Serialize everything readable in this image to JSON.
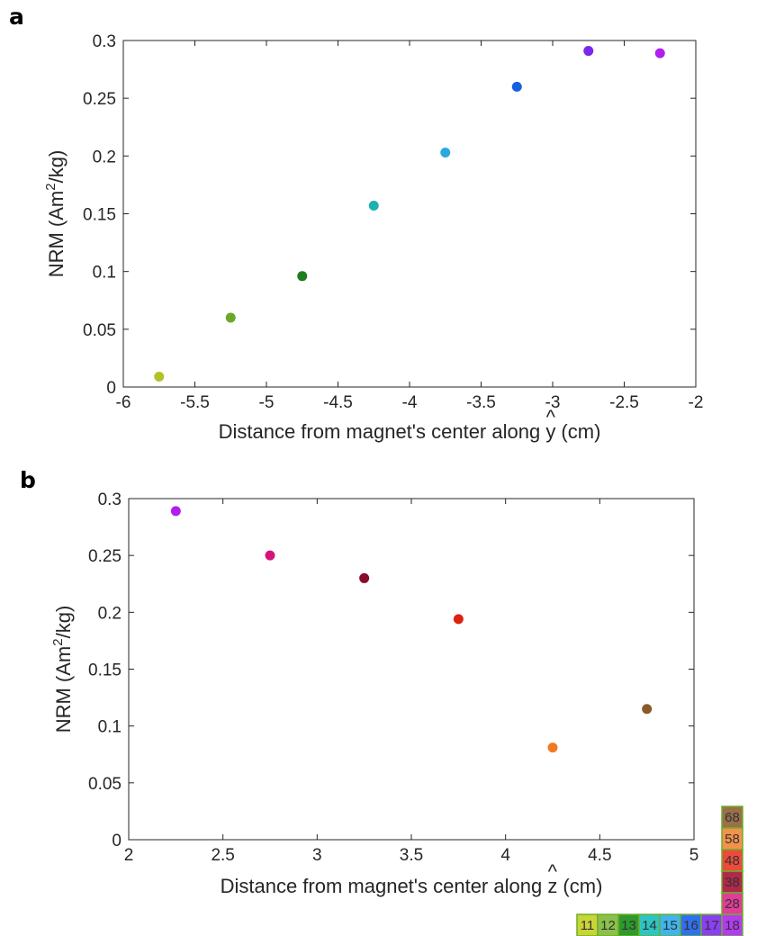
{
  "chart_data": [
    {
      "type": "scatter",
      "panel_label": "a",
      "xlabel": "Distance from magnet's center along y (cm)",
      "xlabel_parts": {
        "before": "Distance from magnet's center along ",
        "hat": "^",
        "var": "y",
        "after": " (cm)"
      },
      "ylabel": "NRM (Am2/kg)",
      "ylabel_parts": {
        "before": "NRM (Am",
        "sup": "2",
        "after": "/kg)"
      },
      "xlim": [
        -6,
        -2
      ],
      "ylim": [
        0,
        0.3
      ],
      "xticks": [
        -6,
        -5.5,
        -5,
        -4.5,
        -4,
        -3.5,
        -3,
        -2.5,
        -2
      ],
      "xtick_labels": [
        "-6",
        "-5.5",
        "-5",
        "-4.5",
        "-4",
        "-3.5",
        "-3",
        "-2.5",
        "-2"
      ],
      "yticks": [
        0,
        0.05,
        0.1,
        0.15,
        0.2,
        0.25,
        0.3
      ],
      "ytick_labels": [
        "0",
        "0.05",
        "0.1",
        "0.15",
        "0.2",
        "0.25",
        "0.3"
      ],
      "grid": false,
      "points": [
        {
          "x": -5.75,
          "y": 0.009,
          "color": "#b3c22a"
        },
        {
          "x": -5.25,
          "y": 0.06,
          "color": "#6aa82a"
        },
        {
          "x": -4.75,
          "y": 0.096,
          "color": "#1e7d1e"
        },
        {
          "x": -4.25,
          "y": 0.157,
          "color": "#1fb0b0"
        },
        {
          "x": -3.75,
          "y": 0.203,
          "color": "#2aa8e0"
        },
        {
          "x": -3.25,
          "y": 0.26,
          "color": "#1a5fe0"
        },
        {
          "x": -2.75,
          "y": 0.291,
          "color": "#7a28ee"
        },
        {
          "x": -2.25,
          "y": 0.289,
          "color": "#b01fee"
        }
      ]
    },
    {
      "type": "scatter",
      "panel_label": "b",
      "xlabel": "Distance from magnet's center along z (cm)",
      "xlabel_parts": {
        "before": "Distance from magnet's center along ",
        "hat": "^",
        "var": "z",
        "after": " (cm)"
      },
      "ylabel": "NRM (Am2/kg)",
      "ylabel_parts": {
        "before": "NRM (Am",
        "sup": "2",
        "after": "/kg)"
      },
      "xlim": [
        2,
        5
      ],
      "ylim": [
        0,
        0.3
      ],
      "xticks": [
        2,
        2.5,
        3,
        3.5,
        4,
        4.5,
        5
      ],
      "xtick_labels": [
        "2",
        "2.5",
        "3",
        "3.5",
        "4",
        "4.5",
        "5"
      ],
      "yticks": [
        0,
        0.05,
        0.1,
        0.15,
        0.2,
        0.25,
        0.3
      ],
      "ytick_labels": [
        "0",
        "0.05",
        "0.1",
        "0.15",
        "0.2",
        "0.25",
        "0.3"
      ],
      "grid": false,
      "points": [
        {
          "x": 2.25,
          "y": 0.289,
          "color": "#b01fee"
        },
        {
          "x": 2.75,
          "y": 0.25,
          "color": "#d4147a"
        },
        {
          "x": 3.25,
          "y": 0.23,
          "color": "#8b0a2a"
        },
        {
          "x": 3.75,
          "y": 0.194,
          "color": "#dd2010"
        },
        {
          "x": 4.25,
          "y": 0.081,
          "color": "#f07a20"
        },
        {
          "x": 4.75,
          "y": 0.115,
          "color": "#8b5a2b"
        }
      ]
    }
  ],
  "sample_key": {
    "border_color": "#6fae2a",
    "row": [
      {
        "label": "11",
        "color": "#c9d436"
      },
      {
        "label": "12",
        "color": "#8bc04a"
      },
      {
        "label": "13",
        "color": "#2e9a2e"
      },
      {
        "label": "14",
        "color": "#2ec4c4"
      },
      {
        "label": "15",
        "color": "#40b4ee"
      },
      {
        "label": "16",
        "color": "#3070ee"
      },
      {
        "label": "17",
        "color": "#8a40f2"
      },
      {
        "label": "18",
        "color": "#b43af2"
      }
    ],
    "column": [
      {
        "label": "68",
        "color": "#9a7048"
      },
      {
        "label": "58",
        "color": "#f4924a"
      },
      {
        "label": "48",
        "color": "#ec4a3a"
      },
      {
        "label": "38",
        "color": "#b0284a"
      },
      {
        "label": "28",
        "color": "#e03c98"
      }
    ]
  }
}
